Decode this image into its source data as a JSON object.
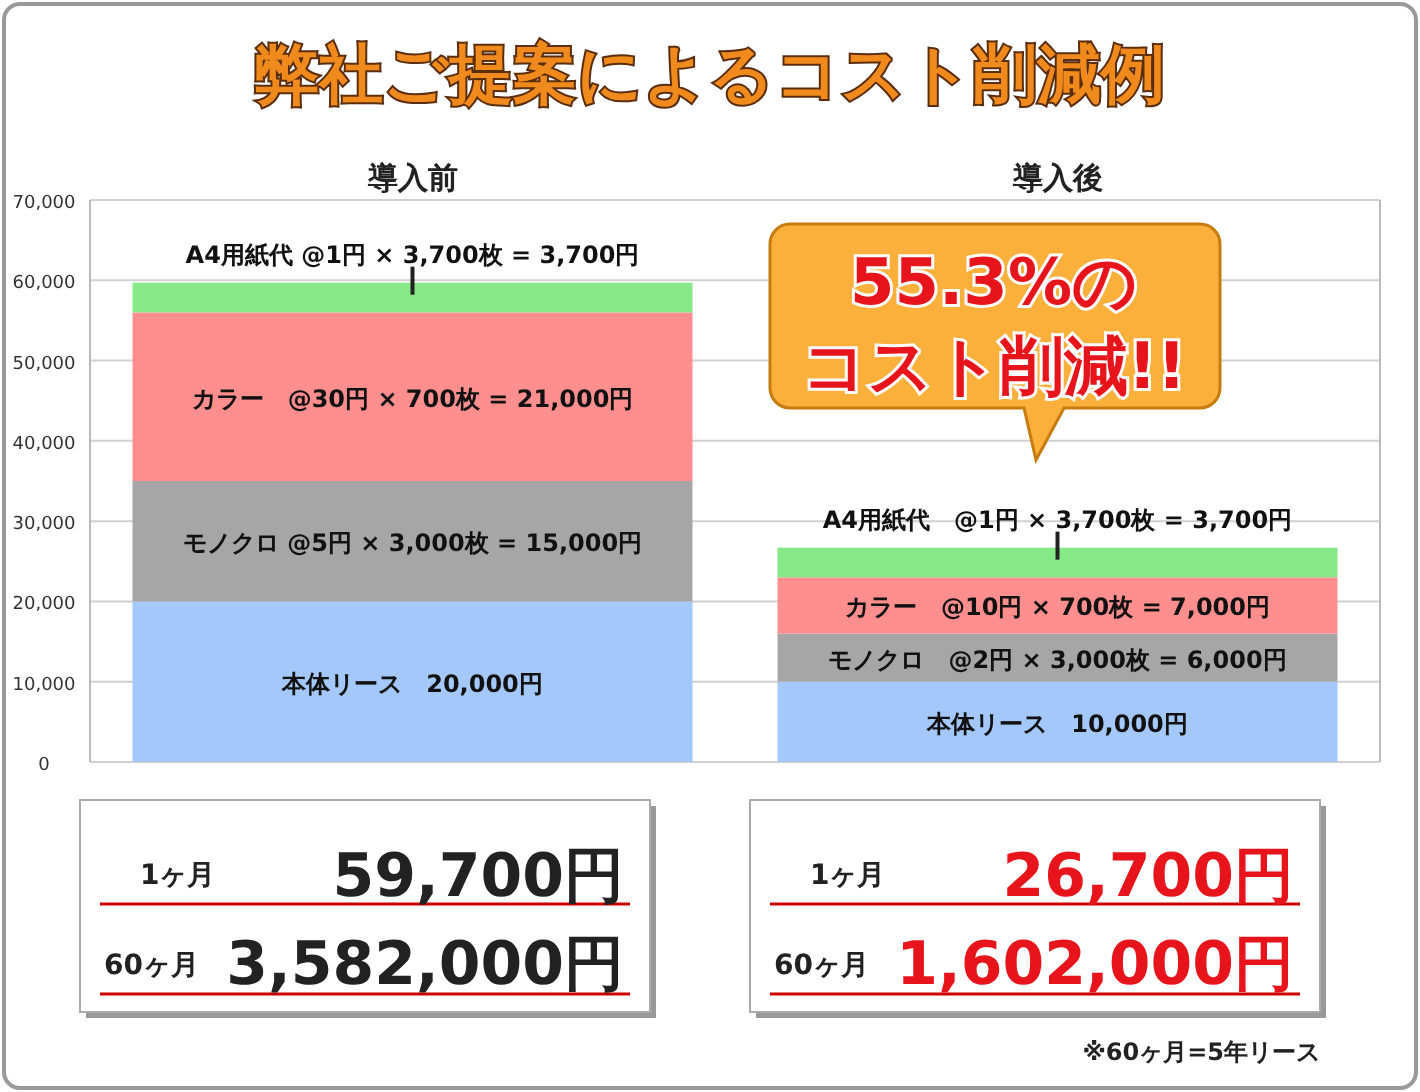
{
  "chart_data": {
    "type": "bar",
    "stacked": true,
    "title": "弊社ご提案によるコスト削減例",
    "categories": [
      "導入前",
      "導入後"
    ],
    "series": [
      {
        "color": "#a4c8fa",
        "values": [
          20000,
          10000
        ],
        "value_labels": [
          "本体リース　20,000円",
          "本体リース　10,000円"
        ]
      },
      {
        "color": "#a6a6a6",
        "values": [
          15000,
          6000
        ],
        "value_labels": [
          "モノクロ @5円 × 3,000枚 = 15,000円",
          "モノクロ　@2円 × 3,000枚 = 6,000円"
        ]
      },
      {
        "color": "#ff8f8f",
        "values": [
          21000,
          7000
        ],
        "value_labels": [
          "カラー　@30円 × 700枚 = 21,000円",
          "カラー　@10円 × 700枚 = 7,000円"
        ]
      },
      {
        "color": "#86e886",
        "values": [
          3700,
          3700
        ],
        "value_labels": [
          "A4用紙代 @1円 × 3,700枚 = 3,700円",
          "A4用紙代　@1円 × 3,700枚 = 3,700円"
        ]
      }
    ],
    "ylim": [
      0,
      70000
    ],
    "yticks": [
      {
        "value": 0,
        "label": "0"
      },
      {
        "value": 10000,
        "label": "10,000"
      },
      {
        "value": 20000,
        "label": "20,000"
      },
      {
        "value": 30000,
        "label": "30,000"
      },
      {
        "value": 40000,
        "label": "40,000"
      },
      {
        "value": 50000,
        "label": "50,000"
      },
      {
        "value": 60000,
        "label": "60,000"
      },
      {
        "value": 70000,
        "label": "70,000"
      }
    ],
    "grid": "y",
    "annotations": [
      "55.3%の",
      "コスト削減!!",
      "1ヶ月",
      "59,700円",
      "60ヶ月",
      "3,582,000円",
      "1ヶ月",
      "26,700円",
      "60ヶ月",
      "1,602,000円",
      "※60ヶ月=5年リース"
    ]
  }
}
